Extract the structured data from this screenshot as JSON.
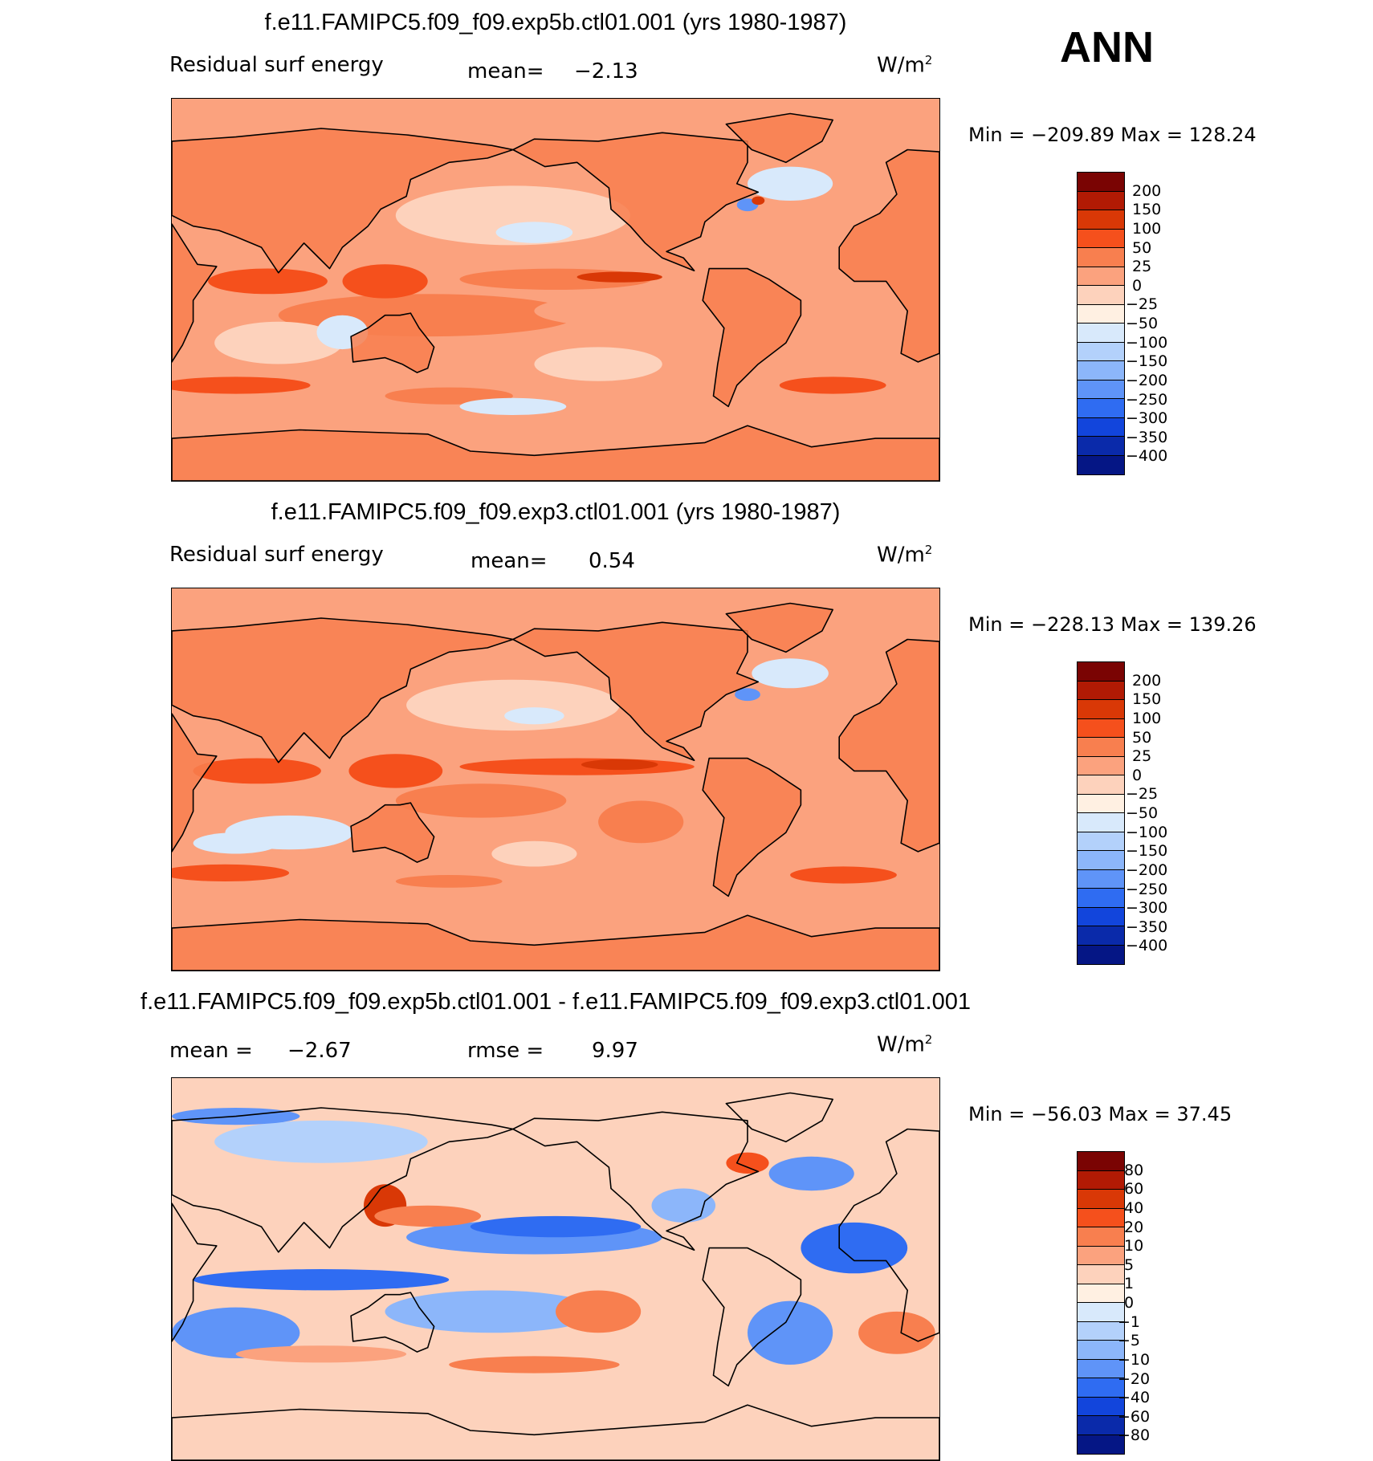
{
  "season": "ANN",
  "units_base": "W/m",
  "units_exp": "2",
  "panels": [
    {
      "title": "f.e11.FAMIPC5.f09_f09.exp5b.ctl01.001 (yrs 1980-1987)",
      "variable": "Residual surf energy",
      "mean_label": "mean=",
      "mean_value": "−2.13",
      "minmax": "Min = −209.89 Max = 128.24",
      "min": -209.89,
      "max": 128.24,
      "scheme": "abs"
    },
    {
      "title": "f.e11.FAMIPC5.f09_f09.exp3.ctl01.001 (yrs 1980-1987)",
      "variable": "Residual surf energy",
      "mean_label": "mean=",
      "mean_value": "0.54",
      "minmax": "Min = −228.13 Max = 139.26",
      "min": -228.13,
      "max": 139.26,
      "scheme": "abs"
    },
    {
      "title": "f.e11.FAMIPC5.f09_f09.exp5b.ctl01.001 - f.e11.FAMIPC5.f09_f09.exp3.ctl01.001",
      "mean_label": "mean =",
      "mean_value": "−2.67",
      "rmse_label": "rmse =",
      "rmse_value": "9.97",
      "minmax": "Min = −56.03 Max =  37.45",
      "min": -56.03,
      "max": 37.45,
      "scheme": "diff"
    }
  ],
  "colorbars": {
    "abs": {
      "levels": [
        "200",
        "150",
        "100",
        "50",
        "25",
        "0",
        "−25",
        "−50",
        "−100",
        "−150",
        "−200",
        "−250",
        "−300",
        "−350",
        "−400"
      ],
      "colors": [
        "#7a0403",
        "#b11a04",
        "#d93806",
        "#f5501c",
        "#f87f4f",
        "#fba27e",
        "#fdd2bc",
        "#fff0e2",
        "#d8e9fb",
        "#b3d1fb",
        "#8cb6fa",
        "#5f94f8",
        "#2f6cf2",
        "#1245dc",
        "#0a2aaa",
        "#051685"
      ]
    },
    "diff": {
      "levels": [
        "80",
        "60",
        "40",
        "20",
        "10",
        "5",
        "1",
        "0",
        "−1",
        "−5",
        "−10",
        "−20",
        "−40",
        "−60",
        "−80"
      ],
      "colors": [
        "#7a0403",
        "#b11a04",
        "#d93806",
        "#f5501c",
        "#f87f4f",
        "#fba27e",
        "#fdd2bc",
        "#fff0e2",
        "#d8e9fb",
        "#b3d1fb",
        "#8cb6fa",
        "#5f94f8",
        "#2f6cf2",
        "#1245dc",
        "#0a2aaa",
        "#051685"
      ]
    }
  },
  "chart_data": [
    {
      "type": "heatmap",
      "title": "f.e11.FAMIPC5.f09_f09.exp5b.ctl01.001 (yrs 1980-1987)",
      "variable": "Residual surf energy",
      "units": "W/m2",
      "mean": -2.13,
      "min": -209.89,
      "max": 128.24,
      "contour_levels": [
        200,
        150,
        100,
        50,
        25,
        0,
        -25,
        -50,
        -100,
        -150,
        -200,
        -250,
        -300,
        -350,
        -400
      ]
    },
    {
      "type": "heatmap",
      "title": "f.e11.FAMIPC5.f09_f09.exp3.ctl01.001 (yrs 1980-1987)",
      "variable": "Residual surf energy",
      "units": "W/m2",
      "mean": 0.54,
      "min": -228.13,
      "max": 139.26,
      "contour_levels": [
        200,
        150,
        100,
        50,
        25,
        0,
        -25,
        -50,
        -100,
        -150,
        -200,
        -250,
        -300,
        -350,
        -400
      ]
    },
    {
      "type": "heatmap",
      "title": "f.e11.FAMIPC5.f09_f09.exp5b.ctl01.001 - f.e11.FAMIPC5.f09_f09.exp3.ctl01.001",
      "units": "W/m2",
      "mean": -2.67,
      "rmse": 9.97,
      "min": -56.03,
      "max": 37.45,
      "contour_levels": [
        80,
        60,
        40,
        20,
        10,
        5,
        1,
        0,
        -1,
        -5,
        -10,
        -20,
        -40,
        -60,
        -80
      ]
    }
  ]
}
